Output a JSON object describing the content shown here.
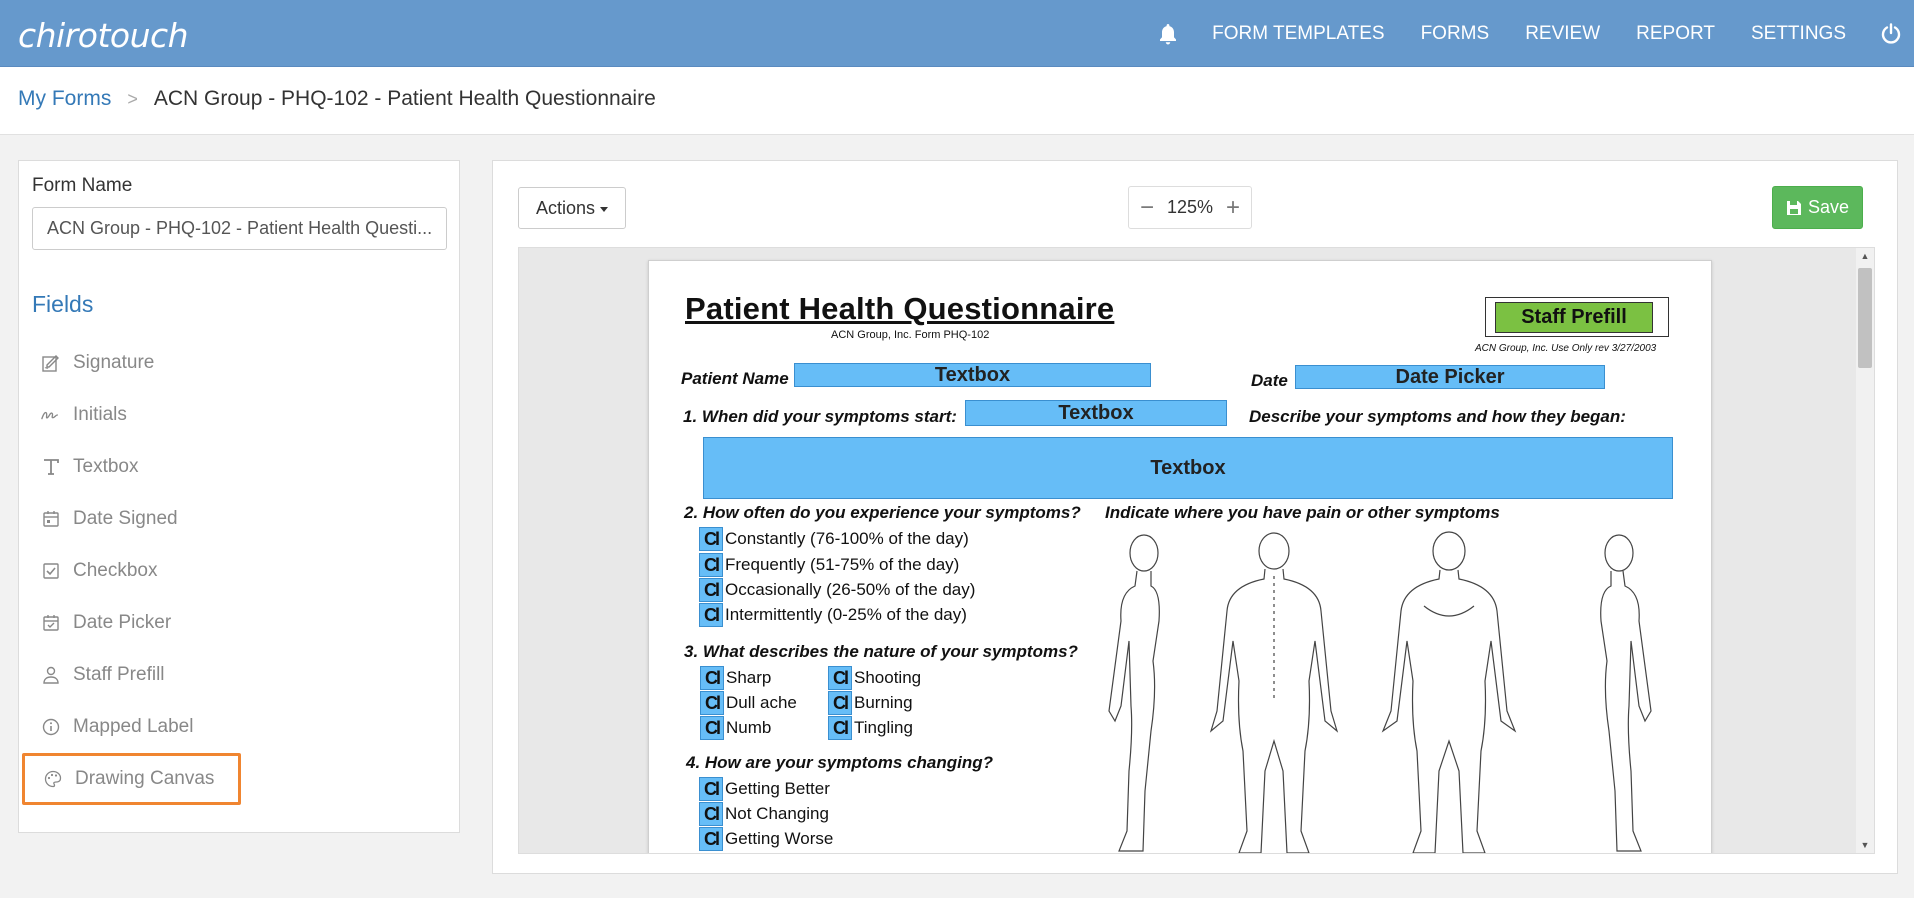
{
  "app": {
    "logo": "chirotouch",
    "nav": [
      "FORM TEMPLATES",
      "FORMS",
      "REVIEW",
      "REPORT",
      "SETTINGS"
    ]
  },
  "breadcrumb": {
    "parent": "My Forms",
    "separator": ">",
    "current": "ACN Group - PHQ-102 - Patient Health Questionnaire"
  },
  "left": {
    "form_name_label": "Form Name",
    "form_name_value": "ACN Group - PHQ-102 - Patient Health Questi...",
    "fields_title": "Fields",
    "fields": [
      {
        "label": "Signature",
        "icon": "signature-icon"
      },
      {
        "label": "Initials",
        "icon": "initials-icon"
      },
      {
        "label": "Textbox",
        "icon": "text-icon"
      },
      {
        "label": "Date Signed",
        "icon": "calendar-icon"
      },
      {
        "label": "Checkbox",
        "icon": "checkbox-icon"
      },
      {
        "label": "Date Picker",
        "icon": "calendar-check-icon"
      },
      {
        "label": "Staff Prefill",
        "icon": "user-icon"
      },
      {
        "label": "Mapped Label",
        "icon": "info-icon"
      },
      {
        "label": "Drawing Canvas",
        "icon": "palette-icon"
      }
    ],
    "highlighted_field": "Drawing Canvas"
  },
  "toolbar": {
    "actions_label": "Actions",
    "zoom_level": "125%",
    "zoom_minus": "−",
    "zoom_plus": "+",
    "save_label": "Save"
  },
  "colors": {
    "topbar": "#6699cc",
    "link": "#3479b7",
    "save": "#5cb85c",
    "highlight": "#f08530",
    "field_overlay": "#66bdf7",
    "staff_prefill": "#7bc142"
  },
  "document": {
    "title": "Patient Health Questionnaire",
    "subtitle": "ACN Group, Inc.   Form PHQ-102",
    "use_note": "ACN Group, Inc. Use Only   rev 3/27/2003",
    "staff_prefill": "Staff Prefill",
    "patient_name_label": "Patient Name",
    "date_label": "Date",
    "textbox": "Textbox",
    "date_picker": "Date Picker",
    "checkbox_code": "Cl",
    "q1": "1. When did your symptoms start:",
    "q1b": "Describe your symptoms and how they began:",
    "q2": "2. How often do you experience your symptoms?",
    "q2_options": [
      "Constantly (76-100% of the day)",
      "Frequently (51-75% of the day)",
      "Occasionally (26-50% of the day)",
      "Intermittently (0-25% of the day)"
    ],
    "pain_label": "Indicate where you have pain or other symptoms",
    "q3": "3. What describes the nature of your symptoms?",
    "q3_options_left": [
      "Sharp",
      "Dull ache",
      "Numb"
    ],
    "q3_options_right": [
      "Shooting",
      "Burning",
      "Tingling"
    ],
    "q4": "4. How are your symptoms changing?",
    "q4_options": [
      "Getting Better",
      "Not Changing",
      "Getting Worse"
    ]
  }
}
